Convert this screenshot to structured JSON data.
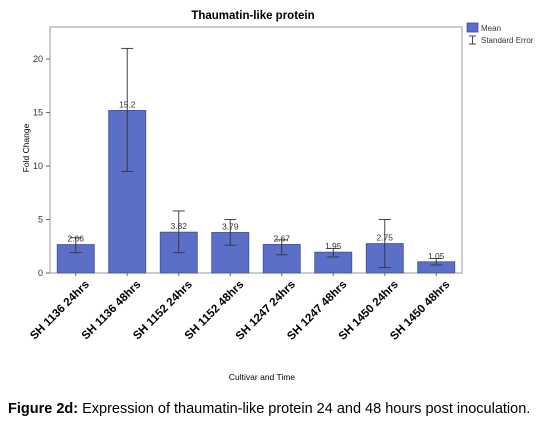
{
  "chart_data": {
    "type": "bar",
    "title": "Thaumatin-like protein",
    "xlabel": "Cultivar and Time",
    "ylabel": "Fold Change",
    "ylim": [
      0,
      23
    ],
    "yticks": [
      0,
      5,
      10,
      15,
      20
    ],
    "categories": [
      "SH 1136 24hrs",
      "SH 1136 48hrs",
      "SH 1152 24hrs",
      "SH 1152 48hrs",
      "SH 1247 24hrs",
      "SH 1247 48hrs",
      "SH 1450 24hrs",
      "SH 1450 48hrs"
    ],
    "series": [
      {
        "name": "Mean",
        "values": [
          2.66,
          15.2,
          3.82,
          3.79,
          2.67,
          1.95,
          2.75,
          1.05
        ],
        "labels": [
          "2.66",
          "15.2",
          "3.82",
          "3.79",
          "2.67",
          "1.95",
          "2.75",
          "1.05"
        ],
        "error_low": [
          1.9,
          9.5,
          1.9,
          2.6,
          1.7,
          1.5,
          0.5,
          0.75
        ],
        "error_high": [
          3.3,
          21.0,
          5.8,
          5.0,
          3.1,
          2.3,
          5.0,
          1.35
        ]
      }
    ],
    "legend": {
      "placement": "top-right",
      "entries": [
        "Mean",
        "Standard Error"
      ]
    },
    "grid": false,
    "bar_color": "#5b6fc7",
    "bar_edge_color": "#3b4ea6"
  },
  "caption": {
    "lead": "Figure 2d:",
    "text": " Expression of thaumatin-like protein 24 and 48 hours post inoculation."
  }
}
